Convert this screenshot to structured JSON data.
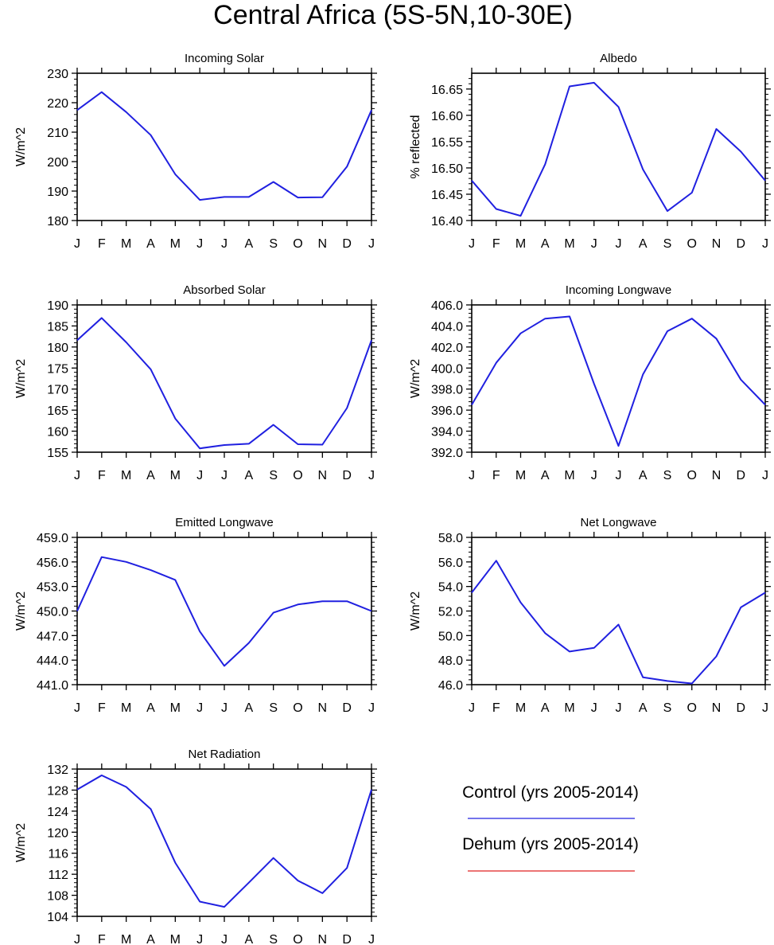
{
  "title": "Central Africa (5S-5N,10-30E)",
  "legend": {
    "items": [
      {
        "label": "Control (yrs 2005-2014)",
        "color": "#2020e0"
      },
      {
        "label": "Dehum (yrs 2005-2014)",
        "color": "#e02020"
      }
    ]
  },
  "chart_data": [
    {
      "type": "line",
      "title": "Incoming Solar",
      "ylabel": "W/m^2",
      "categories": [
        "J",
        "F",
        "M",
        "A",
        "M",
        "J",
        "J",
        "A",
        "S",
        "O",
        "N",
        "D",
        "J"
      ],
      "ylim": [
        180,
        230
      ],
      "yticks": [
        "180",
        "190",
        "200",
        "210",
        "220",
        "230"
      ],
      "grid": false,
      "series": [
        {
          "name": "Control (yrs 2005-2014)",
          "color": "#2020e0",
          "values": [
            217.5,
            223.6,
            216.8,
            209.0,
            195.7,
            187.0,
            188.0,
            188.0,
            193.1,
            187.8,
            187.9,
            198.3,
            217.5
          ]
        }
      ]
    },
    {
      "type": "line",
      "title": "Albedo",
      "ylabel": "% reflected",
      "categories": [
        "J",
        "F",
        "M",
        "A",
        "M",
        "J",
        "J",
        "A",
        "S",
        "O",
        "N",
        "D",
        "J"
      ],
      "ylim": [
        16.4,
        16.68
      ],
      "yticks": [
        "16.40",
        "16.45",
        "16.50",
        "16.55",
        "16.60",
        "16.65"
      ],
      "grid": false,
      "series": [
        {
          "name": "Control (yrs 2005-2014)",
          "color": "#2020e0",
          "values": [
            16.476,
            16.422,
            16.409,
            16.507,
            16.655,
            16.662,
            16.616,
            16.497,
            16.418,
            16.453,
            16.574,
            16.531,
            16.476
          ]
        }
      ]
    },
    {
      "type": "line",
      "title": "Absorbed Solar",
      "ylabel": "W/m^2",
      "categories": [
        "J",
        "F",
        "M",
        "A",
        "M",
        "J",
        "J",
        "A",
        "S",
        "O",
        "N",
        "D",
        "J"
      ],
      "ylim": [
        155,
        190
      ],
      "yticks": [
        "155",
        "160",
        "165",
        "170",
        "175",
        "180",
        "185",
        "190"
      ],
      "grid": false,
      "series": [
        {
          "name": "Control (yrs 2005-2014)",
          "color": "#2020e0",
          "values": [
            181.6,
            186.9,
            181.1,
            174.7,
            163.0,
            155.9,
            156.7,
            157.0,
            161.5,
            156.9,
            156.8,
            165.5,
            181.6
          ]
        }
      ]
    },
    {
      "type": "line",
      "title": "Incoming Longwave",
      "ylabel": "W/m^2",
      "categories": [
        "J",
        "F",
        "M",
        "A",
        "M",
        "J",
        "J",
        "A",
        "S",
        "O",
        "N",
        "D",
        "J"
      ],
      "ylim": [
        392,
        406
      ],
      "yticks": [
        "392.0",
        "394.0",
        "396.0",
        "398.0",
        "400.0",
        "402.0",
        "404.0",
        "406.0"
      ],
      "grid": false,
      "series": [
        {
          "name": "Control (yrs 2005-2014)",
          "color": "#2020e0",
          "values": [
            396.5,
            400.5,
            403.3,
            404.7,
            404.9,
            398.5,
            392.6,
            399.4,
            403.5,
            404.7,
            402.8,
            398.9,
            396.5
          ]
        }
      ]
    },
    {
      "type": "line",
      "title": "Emitted Longwave",
      "ylabel": "W/m^2",
      "categories": [
        "J",
        "F",
        "M",
        "A",
        "M",
        "J",
        "J",
        "A",
        "S",
        "O",
        "N",
        "D",
        "J"
      ],
      "ylim": [
        441,
        459
      ],
      "yticks": [
        "441.0",
        "444.0",
        "447.0",
        "450.0",
        "453.0",
        "456.0",
        "459.0"
      ],
      "grid": false,
      "series": [
        {
          "name": "Control (yrs 2005-2014)",
          "color": "#2020e0",
          "values": [
            450.0,
            456.6,
            456.0,
            455.0,
            453.8,
            447.5,
            443.3,
            446.1,
            449.8,
            450.8,
            451.2,
            451.2,
            450.0
          ]
        }
      ]
    },
    {
      "type": "line",
      "title": "Net Longwave",
      "ylabel": "W/m^2",
      "categories": [
        "J",
        "F",
        "M",
        "A",
        "M",
        "J",
        "J",
        "A",
        "S",
        "O",
        "N",
        "D",
        "J"
      ],
      "ylim": [
        46,
        58
      ],
      "yticks": [
        "46.0",
        "48.0",
        "50.0",
        "52.0",
        "54.0",
        "56.0",
        "58.0"
      ],
      "grid": false,
      "series": [
        {
          "name": "Control (yrs 2005-2014)",
          "color": "#2020e0",
          "values": [
            53.5,
            56.1,
            52.7,
            50.2,
            48.7,
            49.0,
            50.9,
            46.6,
            46.3,
            46.1,
            48.3,
            52.3,
            53.5
          ]
        }
      ]
    },
    {
      "type": "line",
      "title": "Net Radiation",
      "ylabel": "W/m^2",
      "categories": [
        "J",
        "F",
        "M",
        "A",
        "M",
        "J",
        "J",
        "A",
        "S",
        "O",
        "N",
        "D",
        "J"
      ],
      "ylim": [
        104,
        132
      ],
      "yticks": [
        "104",
        "108",
        "112",
        "116",
        "120",
        "124",
        "128",
        "132"
      ],
      "grid": false,
      "series": [
        {
          "name": "Control (yrs 2005-2014)",
          "color": "#2020e0",
          "values": [
            128.1,
            130.8,
            128.6,
            124.4,
            114.2,
            106.8,
            105.8,
            110.4,
            115.1,
            110.8,
            108.4,
            113.2,
            128.1
          ]
        }
      ]
    }
  ]
}
